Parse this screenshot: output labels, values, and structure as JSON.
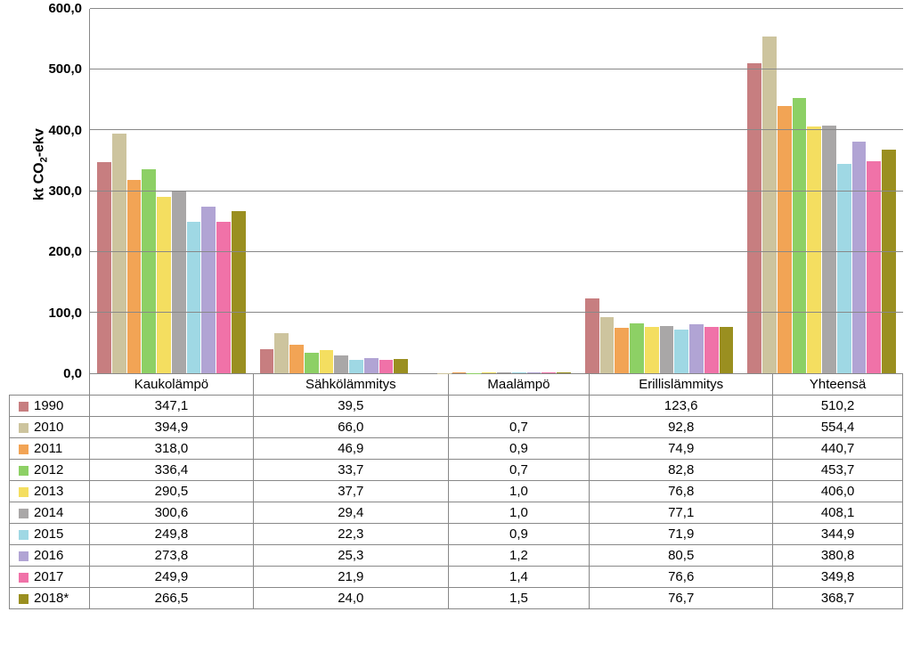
{
  "chart": {
    "type": "bar",
    "y_axis_label_html": "kt CO<sub>2</sub>-ekv",
    "y_axis_label": "kt CO2-ekv",
    "ylim": [
      0,
      600
    ],
    "ytick_step": 100,
    "yticks": [
      "0,0",
      "100,0",
      "200,0",
      "300,0",
      "400,0",
      "500,0",
      "600,0"
    ],
    "grid_color": "#888888",
    "background_color": "#ffffff",
    "label_fontsize": 16,
    "tick_fontsize": 15,
    "categories": [
      "Kaukolämpö",
      "Sähkölämmitys",
      "Maalämpö",
      "Erillislämmitys",
      "Yhteensä"
    ],
    "series": [
      {
        "name": "1990",
        "color": "#c77e80",
        "values": [
          347.1,
          39.5,
          null,
          123.6,
          510.2
        ],
        "display": [
          "347,1",
          "39,5",
          "",
          "123,6",
          "510,2"
        ]
      },
      {
        "name": "2010",
        "color": "#cdc49e",
        "values": [
          394.9,
          66.0,
          0.7,
          92.8,
          554.4
        ],
        "display": [
          "394,9",
          "66,0",
          "0,7",
          "92,8",
          "554,4"
        ]
      },
      {
        "name": "2011",
        "color": "#f2a455",
        "values": [
          318.0,
          46.9,
          0.9,
          74.9,
          440.7
        ],
        "display": [
          "318,0",
          "46,9",
          "0,9",
          "74,9",
          "440,7"
        ]
      },
      {
        "name": "2012",
        "color": "#8dd065",
        "values": [
          336.4,
          33.7,
          0.7,
          82.8,
          453.7
        ],
        "display": [
          "336,4",
          "33,7",
          "0,7",
          "82,8",
          "453,7"
        ]
      },
      {
        "name": "2013",
        "color": "#f4de60",
        "values": [
          290.5,
          37.7,
          1.0,
          76.8,
          406.0
        ],
        "display": [
          "290,5",
          "37,7",
          "1,0",
          "76,8",
          "406,0"
        ]
      },
      {
        "name": "2014",
        "color": "#a9a7a7",
        "values": [
          300.6,
          29.4,
          1.0,
          77.1,
          408.1
        ],
        "display": [
          "300,6",
          "29,4",
          "1,0",
          "77,1",
          "408,1"
        ]
      },
      {
        "name": "2015",
        "color": "#9fd8e4",
        "values": [
          249.8,
          22.3,
          0.9,
          71.9,
          344.9
        ],
        "display": [
          "249,8",
          "22,3",
          "0,9",
          "71,9",
          "344,9"
        ]
      },
      {
        "name": "2016",
        "color": "#b1a4d4",
        "values": [
          273.8,
          25.3,
          1.2,
          80.5,
          380.8
        ],
        "display": [
          "273,8",
          "25,3",
          "1,2",
          "80,5",
          "380,8"
        ]
      },
      {
        "name": "2017",
        "color": "#f072a8",
        "values": [
          249.9,
          21.9,
          1.4,
          76.6,
          349.8
        ],
        "display": [
          "249,9",
          "21,9",
          "1,4",
          "76,6",
          "349,8"
        ]
      },
      {
        "name": "2018*",
        "color": "#9a8f20",
        "values": [
          266.5,
          24.0,
          1.5,
          76.7,
          368.7
        ],
        "display": [
          "266,5",
          "24,0",
          "1,5",
          "76,7",
          "368,7"
        ]
      }
    ]
  }
}
